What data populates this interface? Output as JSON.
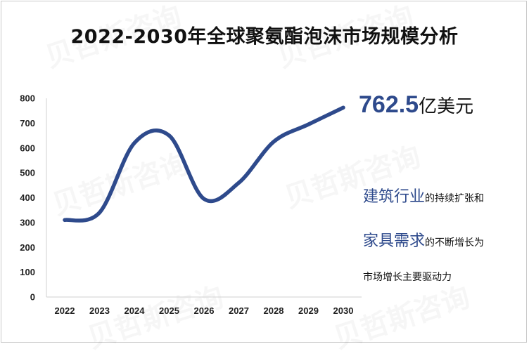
{
  "title": "2022-2030年全球聚氨酯泡沫市场规模分析",
  "callout": {
    "value": "762.5",
    "unit": "亿美元"
  },
  "notes": {
    "line1_em": "建筑行业",
    "line1_rest": "的持续扩张和",
    "line2_em": "家具需求",
    "line2_rest": "的不断增长为",
    "line3": "市场增长主要驱动力"
  },
  "watermark": "贝哲斯咨询",
  "colors": {
    "line": "#2E4A8C",
    "axis": "#d0d0d0",
    "accent": "#2E4A8C"
  },
  "chart_data": {
    "type": "line",
    "title": "2022-2030年全球聚氨酯泡沫市场规模分析",
    "xlabel": "",
    "ylabel": "",
    "ylim": [
      0,
      800
    ],
    "yticks": [
      0,
      100,
      200,
      300,
      400,
      500,
      600,
      700,
      800
    ],
    "x": [
      "2022",
      "2023",
      "2024",
      "2025",
      "2026",
      "2027",
      "2028",
      "2029",
      "2030"
    ],
    "series": [
      {
        "values": [
          310,
          340,
          620,
          650,
          395,
          460,
          625,
          695,
          762.5
        ]
      }
    ],
    "grid": false,
    "legend": "none"
  }
}
